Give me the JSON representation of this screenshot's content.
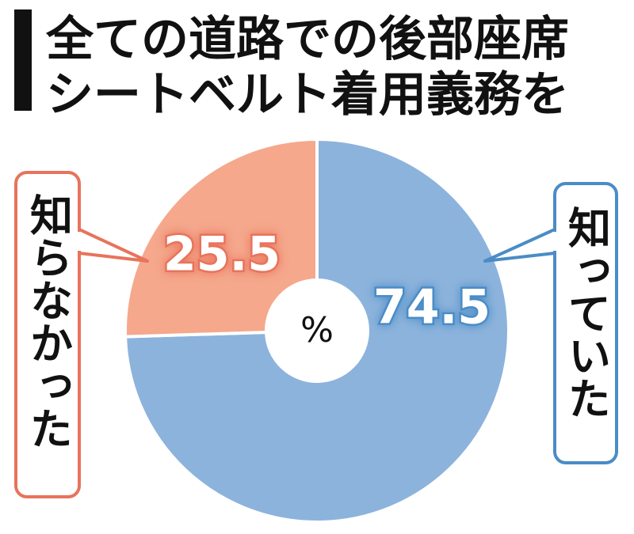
{
  "chart_data": {
    "type": "pie",
    "title": [
      "全ての道路での後部座席",
      "シートベルト着用義務を"
    ],
    "categories": [
      "知っていた",
      "知らなかった"
    ],
    "values": [
      74.5,
      25.5
    ],
    "colors": [
      "#8cb3dc",
      "#f5a88c"
    ],
    "label_colors": [
      "#4a8cc6",
      "#e8735c"
    ],
    "unit": "%"
  }
}
